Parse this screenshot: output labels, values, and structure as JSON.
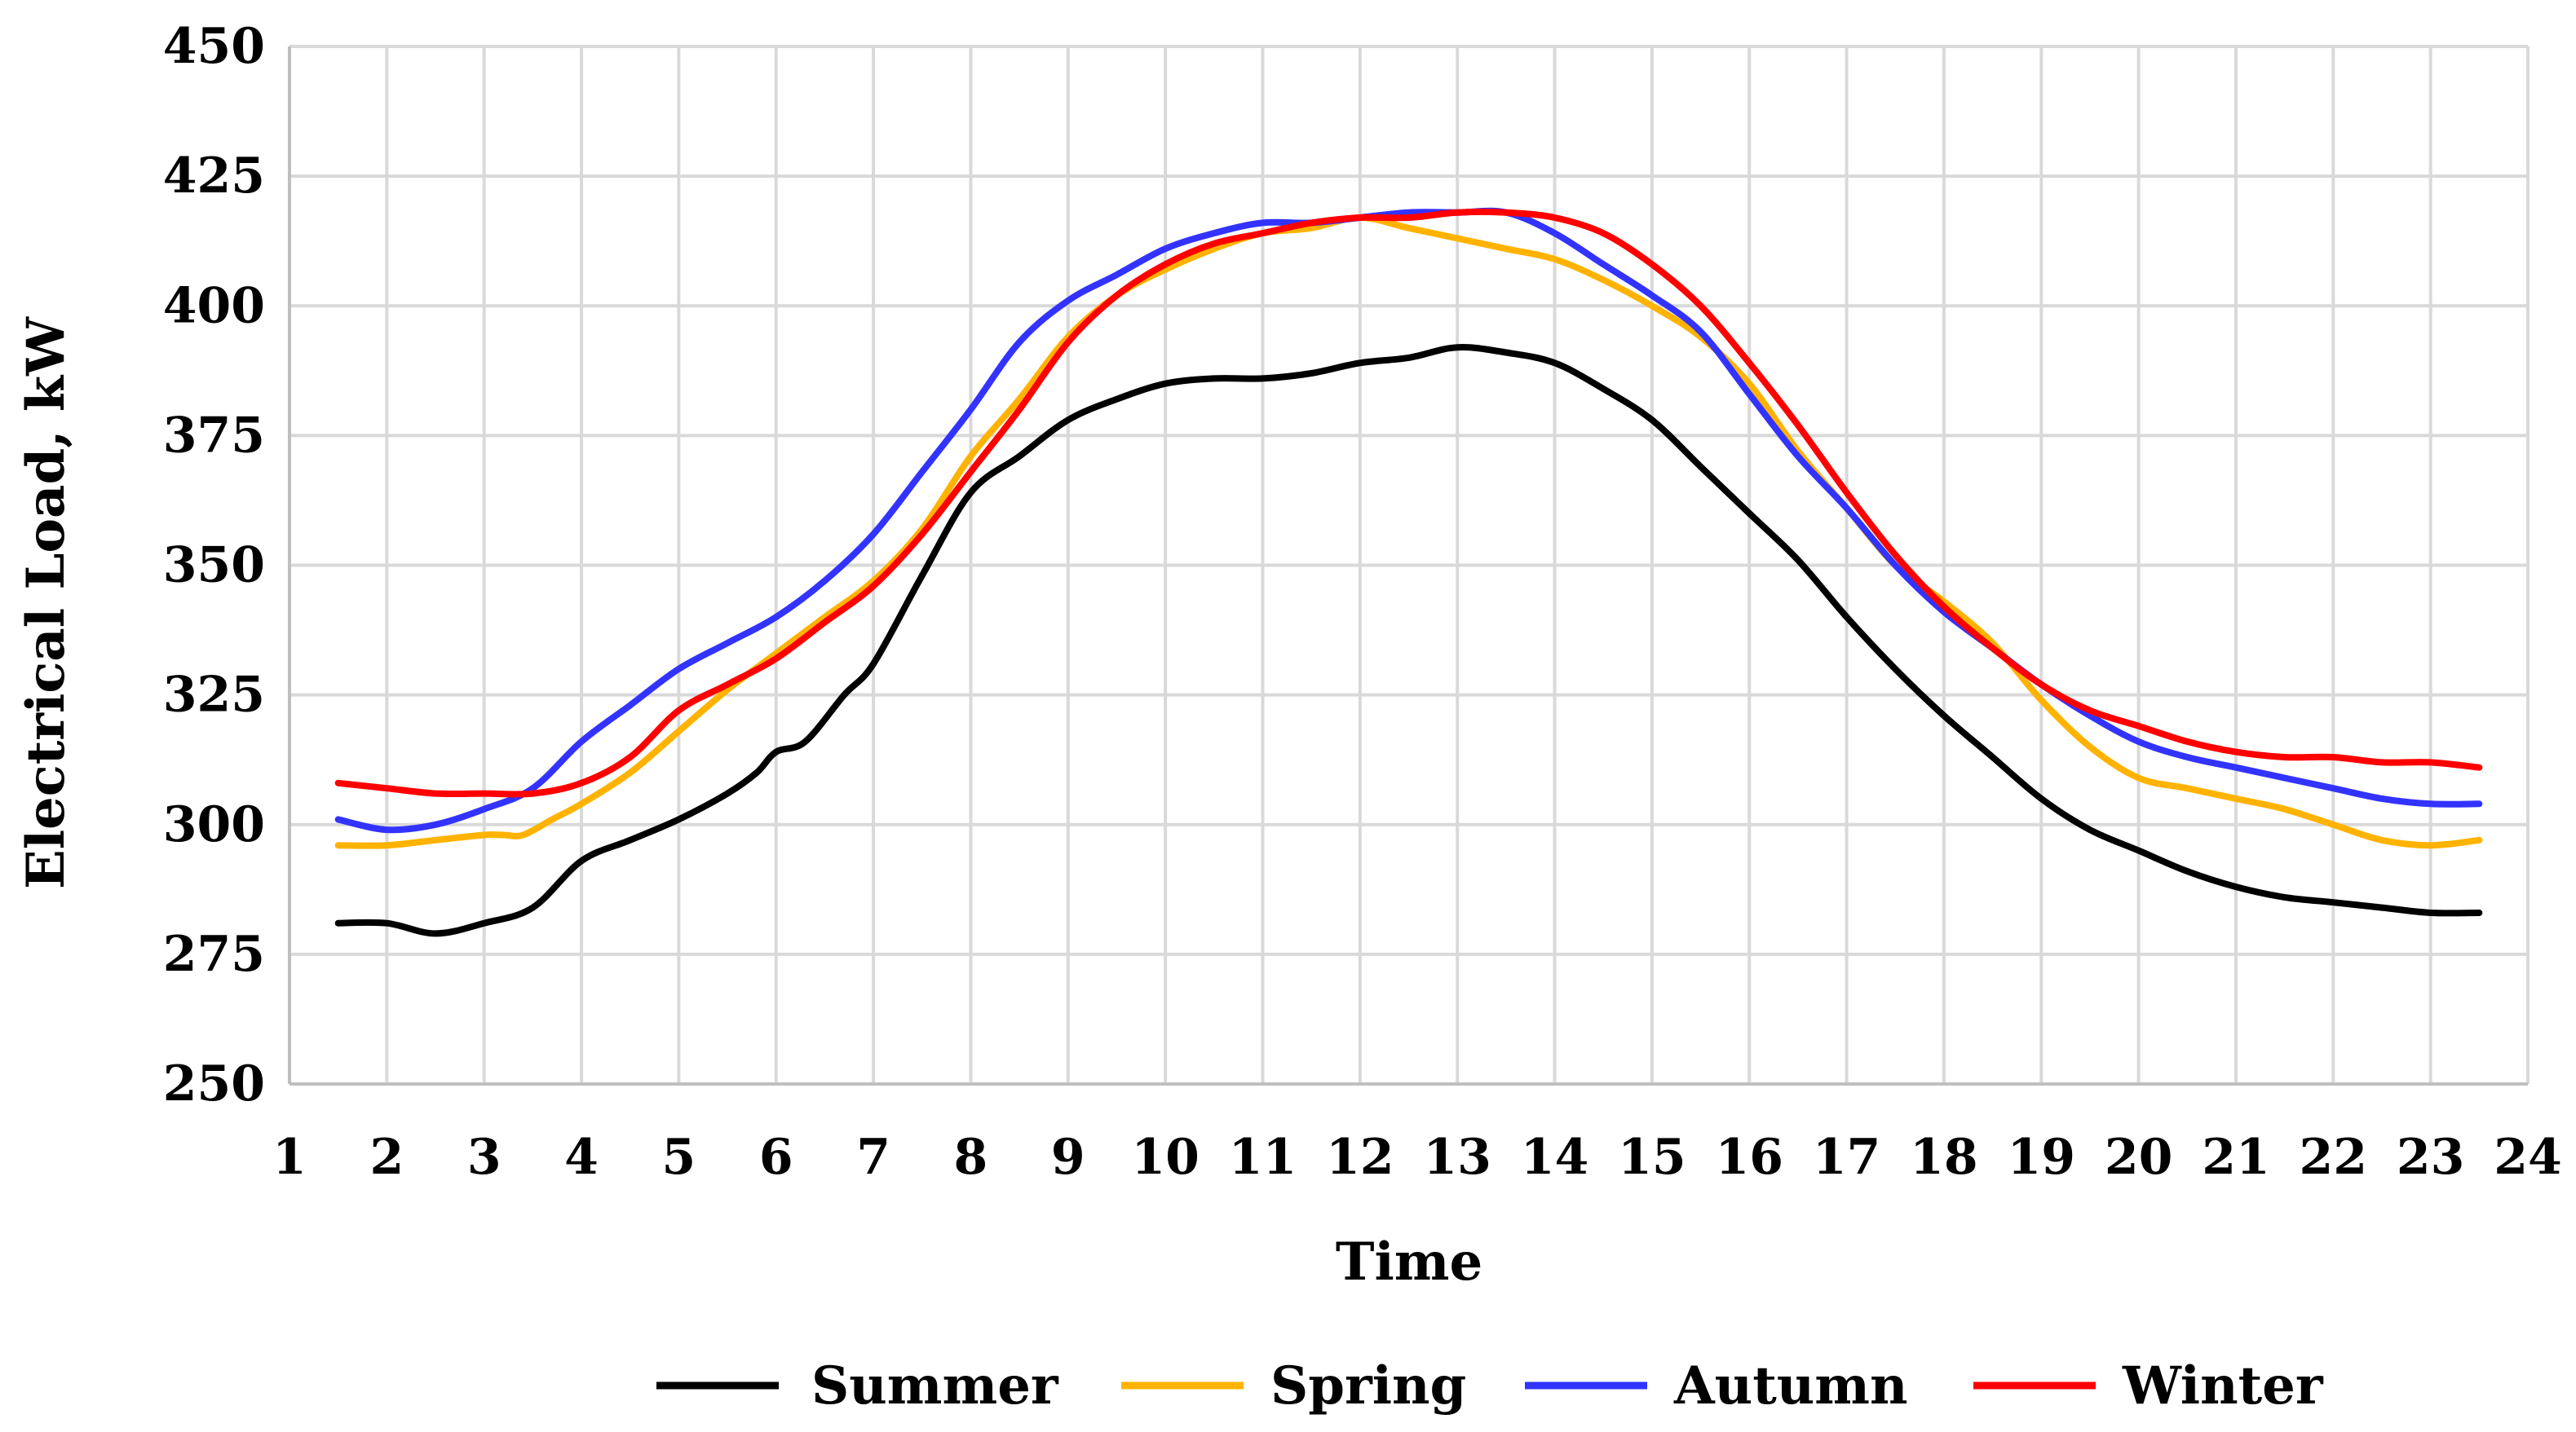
{
  "chart_data": {
    "type": "line",
    "title": "",
    "xlabel": "Time",
    "ylabel": "Electrical Load, kW",
    "xlim": [
      1,
      24
    ],
    "ylim": [
      250,
      450
    ],
    "x_ticks": [
      1,
      2,
      3,
      4,
      5,
      6,
      7,
      8,
      9,
      10,
      11,
      12,
      13,
      14,
      15,
      16,
      17,
      18,
      19,
      20,
      21,
      22,
      23,
      24
    ],
    "y_ticks": [
      250,
      275,
      300,
      325,
      350,
      375,
      400,
      425,
      450
    ],
    "grid": true,
    "legend_position": "bottom",
    "series": [
      {
        "name": "Summer",
        "color": "#000000",
        "x": [
          1.5,
          2,
          2.5,
          3,
          3.5,
          4,
          4.5,
          5,
          5.5,
          5.8,
          6,
          6.3,
          6.7,
          7,
          7.5,
          8,
          8.5,
          9,
          9.5,
          10,
          10.5,
          11,
          11.5,
          12,
          12.5,
          13,
          13.5,
          14,
          14.5,
          15,
          15.5,
          16,
          16.5,
          17,
          17.5,
          18,
          18.5,
          19,
          19.5,
          20,
          20.5,
          21,
          21.5,
          22,
          22.5,
          23,
          23.5
        ],
        "values": [
          281,
          281,
          279,
          281,
          284,
          293,
          297,
          301,
          306,
          310,
          314,
          316,
          325,
          331,
          348,
          364,
          371,
          378,
          382,
          385,
          386,
          386,
          387,
          389,
          390,
          392,
          391,
          389,
          384,
          378,
          369,
          360,
          351,
          340,
          330,
          321,
          313,
          305,
          299,
          295,
          291,
          288,
          286,
          285,
          284,
          283,
          283
        ]
      },
      {
        "name": "Spring",
        "color": "#FFB300",
        "x": [
          1.5,
          2,
          2.5,
          3,
          3.2,
          3.4,
          3.7,
          4,
          4.5,
          5,
          5.5,
          6,
          6.5,
          7,
          7.5,
          8,
          8.5,
          9,
          9.5,
          10,
          10.5,
          11,
          11.5,
          12,
          12.5,
          13,
          13.5,
          14,
          14.5,
          15,
          15.5,
          16,
          16.5,
          17,
          17.5,
          18,
          18.5,
          19,
          19.5,
          20,
          20.5,
          21,
          21.5,
          22,
          22.5,
          23,
          23.5
        ],
        "values": [
          296,
          296,
          297,
          298,
          298,
          298,
          301,
          304,
          310,
          318,
          326,
          333,
          340,
          347,
          357,
          371,
          382,
          394,
          402,
          407,
          411,
          414,
          415,
          417,
          415,
          413,
          411,
          409,
          405,
          400,
          394,
          385,
          372,
          361,
          350,
          343,
          335,
          324,
          315,
          309,
          307,
          305,
          303,
          300,
          297,
          296,
          297
        ]
      },
      {
        "name": "Autumn",
        "color": "#3333FF",
        "x": [
          1.5,
          2,
          2.5,
          3,
          3.5,
          4,
          4.5,
          5,
          5.5,
          6,
          6.5,
          7,
          7.5,
          8,
          8.5,
          9,
          9.5,
          10,
          10.5,
          11,
          11.5,
          12,
          12.5,
          13,
          13.5,
          14,
          14.5,
          15,
          15.5,
          16,
          16.5,
          17,
          17.5,
          18,
          18.5,
          19,
          19.5,
          20,
          20.5,
          21,
          21.5,
          22,
          22.5,
          23,
          23.5
        ],
        "values": [
          301,
          299,
          300,
          303,
          307,
          316,
          323,
          330,
          335,
          340,
          347,
          356,
          368,
          380,
          393,
          401,
          406,
          411,
          414,
          416,
          416,
          417,
          418,
          418,
          418,
          414,
          408,
          402,
          395,
          383,
          371,
          361,
          350,
          341,
          334,
          327,
          321,
          316,
          313,
          311,
          309,
          307,
          305,
          304,
          304
        ]
      },
      {
        "name": "Winter",
        "color": "#FF0000",
        "x": [
          1.5,
          2,
          2.5,
          3,
          3.5,
          4,
          4.5,
          5,
          5.5,
          6,
          6.5,
          7,
          7.5,
          8,
          8.5,
          9,
          9.5,
          10,
          10.5,
          11,
          11.5,
          12,
          12.5,
          13,
          13.5,
          14,
          14.5,
          15,
          15.5,
          16,
          16.5,
          17,
          17.5,
          18,
          18.5,
          19,
          19.5,
          20,
          20.5,
          21,
          21.5,
          22,
          22.5,
          23,
          23.5
        ],
        "values": [
          308,
          307,
          306,
          306,
          306,
          308,
          313,
          322,
          327,
          332,
          339,
          346,
          356,
          368,
          380,
          393,
          402,
          408,
          412,
          414,
          416,
          417,
          417,
          418,
          418,
          417,
          414,
          408,
          400,
          389,
          377,
          364,
          352,
          342,
          334,
          327,
          322,
          319,
          316,
          314,
          313,
          313,
          312,
          312,
          311
        ]
      }
    ]
  }
}
